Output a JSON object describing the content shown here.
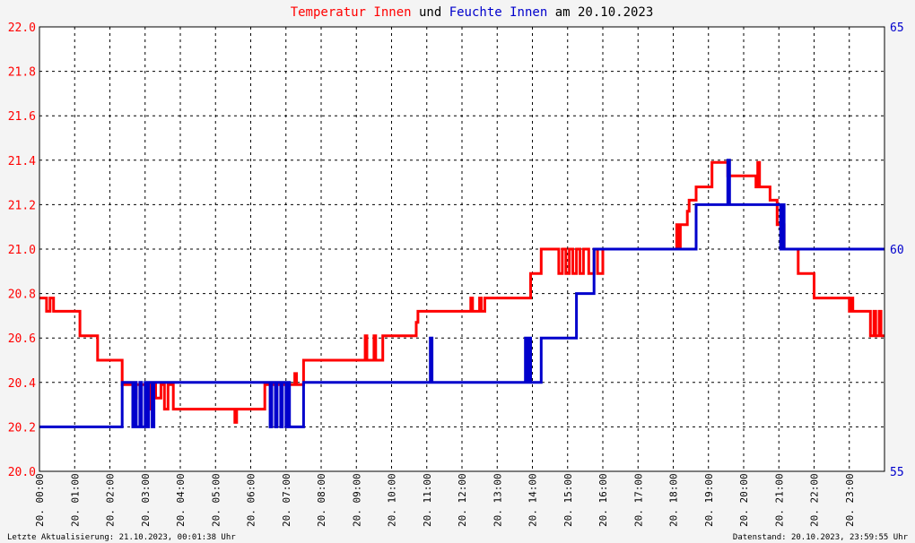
{
  "title": {
    "part1": "Temperatur Innen",
    "part2": " und ",
    "part3": "Feuchte Innen",
    "part4": " am 20.10.2023"
  },
  "footer": {
    "left": "Letzte Aktualisierung: 21.10.2023, 00:01:38 Uhr",
    "right": "Datenstand: 20.10.2023, 23:59:55 Uhr"
  },
  "colors": {
    "temperature": "#ff0000",
    "humidity": "#0000cc",
    "grid": "#000000",
    "background": "#ffffff"
  },
  "chart_data": {
    "type": "line",
    "x_unit": "hours (20.10.2023)",
    "xlim": [
      0,
      24
    ],
    "x_ticks": [
      "20. 00:00",
      "20. 01:00",
      "20. 02:00",
      "20. 03:00",
      "20. 04:00",
      "20. 05:00",
      "20. 06:00",
      "20. 07:00",
      "20. 08:00",
      "20. 09:00",
      "20. 10:00",
      "20. 11:00",
      "20. 12:00",
      "20. 13:00",
      "20. 14:00",
      "20. 15:00",
      "20. 16:00",
      "20. 17:00",
      "20. 18:00",
      "20. 19:00",
      "20. 20:00",
      "20. 21:00",
      "20. 22:00",
      "20. 23:00"
    ],
    "y_left": {
      "label": "Temperatur Innen",
      "ylim": [
        20.0,
        22.0
      ],
      "ticks": [
        "20.0",
        "20.2",
        "20.4",
        "20.6",
        "20.8",
        "21.0",
        "21.2",
        "21.4",
        "21.6",
        "21.8",
        "22.0"
      ]
    },
    "y_right": {
      "label": "Feuchte Innen",
      "ylim": [
        55,
        65
      ],
      "ticks": [
        "55",
        "60",
        "65"
      ]
    },
    "grid": true,
    "series": [
      {
        "name": "Temperatur Innen",
        "axis": "left",
        "points": [
          [
            0.0,
            20.78
          ],
          [
            0.2,
            20.72
          ],
          [
            0.3,
            20.78
          ],
          [
            0.4,
            20.72
          ],
          [
            1.1,
            20.72
          ],
          [
            1.15,
            20.61
          ],
          [
            1.6,
            20.61
          ],
          [
            1.65,
            20.5
          ],
          [
            2.3,
            20.5
          ],
          [
            2.35,
            20.39
          ],
          [
            2.6,
            20.39
          ],
          [
            2.65,
            20.33
          ],
          [
            2.75,
            20.39
          ],
          [
            3.0,
            20.39
          ],
          [
            3.05,
            20.28
          ],
          [
            3.15,
            20.39
          ],
          [
            3.3,
            20.33
          ],
          [
            3.45,
            20.39
          ],
          [
            3.55,
            20.28
          ],
          [
            3.65,
            20.39
          ],
          [
            3.8,
            20.28
          ],
          [
            5.5,
            20.28
          ],
          [
            5.55,
            20.22
          ],
          [
            5.6,
            20.28
          ],
          [
            6.35,
            20.28
          ],
          [
            6.4,
            20.39
          ],
          [
            7.2,
            20.39
          ],
          [
            7.25,
            20.44
          ],
          [
            7.3,
            20.39
          ],
          [
            7.45,
            20.39
          ],
          [
            7.5,
            20.5
          ],
          [
            9.2,
            20.5
          ],
          [
            9.25,
            20.61
          ],
          [
            9.3,
            20.5
          ],
          [
            9.45,
            20.5
          ],
          [
            9.5,
            20.61
          ],
          [
            9.55,
            20.5
          ],
          [
            9.7,
            20.5
          ],
          [
            9.75,
            20.61
          ],
          [
            10.65,
            20.61
          ],
          [
            10.7,
            20.67
          ],
          [
            10.75,
            20.72
          ],
          [
            11.1,
            20.72
          ],
          [
            12.2,
            20.72
          ],
          [
            12.25,
            20.78
          ],
          [
            12.3,
            20.72
          ],
          [
            12.45,
            20.72
          ],
          [
            12.5,
            20.78
          ],
          [
            12.55,
            20.72
          ],
          [
            12.65,
            20.78
          ],
          [
            13.9,
            20.78
          ],
          [
            13.95,
            20.89
          ],
          [
            14.2,
            20.89
          ],
          [
            14.25,
            21.0
          ],
          [
            14.7,
            21.0
          ],
          [
            14.75,
            20.89
          ],
          [
            14.85,
            21.0
          ],
          [
            14.95,
            20.89
          ],
          [
            15.05,
            21.0
          ],
          [
            15.15,
            20.89
          ],
          [
            15.25,
            21.0
          ],
          [
            15.35,
            20.89
          ],
          [
            15.45,
            21.0
          ],
          [
            15.6,
            20.89
          ],
          [
            15.75,
            21.0
          ],
          [
            15.85,
            20.89
          ],
          [
            16.0,
            21.0
          ],
          [
            18.05,
            21.0
          ],
          [
            18.1,
            21.11
          ],
          [
            18.15,
            21.0
          ],
          [
            18.2,
            21.11
          ],
          [
            18.35,
            21.11
          ],
          [
            18.4,
            21.17
          ],
          [
            18.45,
            21.22
          ],
          [
            18.6,
            21.22
          ],
          [
            18.65,
            21.28
          ],
          [
            19.05,
            21.28
          ],
          [
            19.1,
            21.39
          ],
          [
            19.5,
            21.39
          ],
          [
            19.55,
            21.33
          ],
          [
            20.3,
            21.33
          ],
          [
            20.35,
            21.28
          ],
          [
            20.4,
            21.39
          ],
          [
            20.45,
            21.28
          ],
          [
            20.7,
            21.28
          ],
          [
            20.75,
            21.22
          ],
          [
            20.9,
            21.22
          ],
          [
            20.95,
            21.11
          ],
          [
            21.1,
            21.11
          ],
          [
            21.15,
            21.0
          ],
          [
            21.5,
            21.0
          ],
          [
            21.55,
            20.89
          ],
          [
            21.95,
            20.89
          ],
          [
            22.0,
            20.78
          ],
          [
            22.95,
            20.78
          ],
          [
            23.0,
            20.72
          ],
          [
            23.05,
            20.78
          ],
          [
            23.1,
            20.72
          ],
          [
            23.55,
            20.72
          ],
          [
            23.6,
            20.61
          ],
          [
            23.7,
            20.72
          ],
          [
            23.75,
            20.61
          ],
          [
            23.85,
            20.72
          ],
          [
            23.9,
            20.61
          ],
          [
            24.0,
            20.61
          ]
        ]
      },
      {
        "name": "Feuchte Innen",
        "axis": "right",
        "points": [
          [
            0.0,
            56.0
          ],
          [
            2.3,
            56.0
          ],
          [
            2.35,
            57.0
          ],
          [
            2.6,
            57.0
          ],
          [
            2.65,
            56.0
          ],
          [
            2.7,
            57.0
          ],
          [
            2.75,
            56.0
          ],
          [
            2.85,
            57.0
          ],
          [
            2.9,
            56.0
          ],
          [
            3.0,
            57.0
          ],
          [
            3.05,
            56.0
          ],
          [
            3.1,
            57.0
          ],
          [
            3.2,
            56.0
          ],
          [
            3.25,
            57.0
          ],
          [
            6.5,
            57.0
          ],
          [
            6.55,
            56.0
          ],
          [
            6.6,
            57.0
          ],
          [
            6.7,
            56.0
          ],
          [
            6.75,
            57.0
          ],
          [
            6.85,
            56.0
          ],
          [
            6.9,
            57.0
          ],
          [
            7.0,
            56.0
          ],
          [
            7.05,
            57.0
          ],
          [
            7.1,
            56.0
          ],
          [
            7.45,
            56.0
          ],
          [
            7.5,
            57.0
          ],
          [
            11.05,
            57.0
          ],
          [
            11.1,
            58.0
          ],
          [
            11.15,
            57.0
          ],
          [
            13.75,
            57.0
          ],
          [
            13.8,
            58.0
          ],
          [
            13.85,
            57.0
          ],
          [
            13.9,
            58.0
          ],
          [
            13.95,
            57.0
          ],
          [
            14.2,
            57.0
          ],
          [
            14.25,
            58.0
          ],
          [
            15.2,
            58.0
          ],
          [
            15.25,
            59.0
          ],
          [
            15.7,
            59.0
          ],
          [
            15.75,
            60.0
          ],
          [
            18.6,
            60.0
          ],
          [
            18.65,
            61.0
          ],
          [
            19.5,
            61.0
          ],
          [
            19.55,
            62.0
          ],
          [
            19.6,
            61.0
          ],
          [
            21.0,
            61.0
          ],
          [
            21.05,
            60.0
          ],
          [
            21.1,
            61.0
          ],
          [
            21.15,
            60.0
          ],
          [
            24.0,
            60.0
          ]
        ]
      }
    ]
  }
}
